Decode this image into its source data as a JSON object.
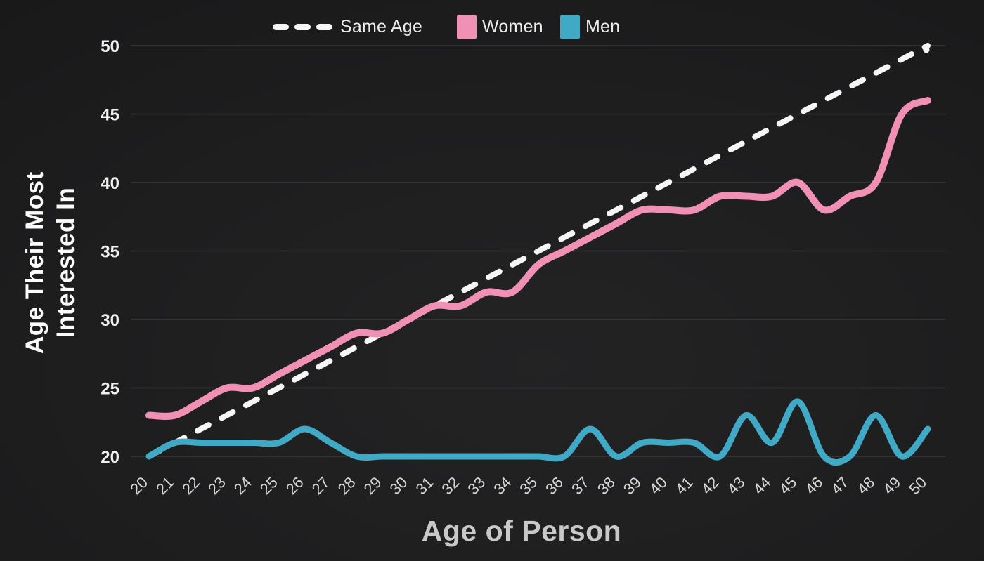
{
  "chart_data": {
    "type": "line",
    "x_label": "Age of Person",
    "y_label_lines": [
      "Age Their Most",
      "Interested In"
    ],
    "x": [
      20,
      21,
      22,
      23,
      24,
      25,
      26,
      27,
      28,
      29,
      30,
      31,
      32,
      33,
      34,
      35,
      36,
      37,
      38,
      39,
      40,
      41,
      42,
      43,
      44,
      45,
      46,
      47,
      48,
      49,
      50
    ],
    "y_ticks": [
      20,
      25,
      30,
      35,
      40,
      45,
      50
    ],
    "xlim": [
      20,
      50
    ],
    "ylim": [
      20,
      50
    ],
    "grid": "horizontal",
    "legend_position": "top-center",
    "series": [
      {
        "name": "Same Age",
        "style": "dashed",
        "color": "#f6f6f6",
        "values": [
          20,
          21,
          22,
          23,
          24,
          25,
          26,
          27,
          28,
          29,
          30,
          31,
          32,
          33,
          34,
          35,
          36,
          37,
          38,
          39,
          40,
          41,
          42,
          43,
          44,
          45,
          46,
          47,
          48,
          49,
          50
        ]
      },
      {
        "name": "Women",
        "style": "solid",
        "color": "#f090b5",
        "values": [
          23,
          23,
          24,
          25,
          25,
          26,
          27,
          28,
          29,
          29,
          30,
          31,
          31,
          32,
          32,
          34,
          35,
          36,
          37,
          38,
          38,
          38,
          39,
          39,
          39,
          40,
          38,
          39,
          40,
          45,
          46
        ]
      },
      {
        "name": "Men",
        "style": "solid",
        "color": "#40aac6",
        "values": [
          20,
          21,
          21,
          21,
          21,
          21,
          22,
          21,
          20,
          20,
          20,
          20,
          20,
          20,
          20,
          20,
          20,
          22,
          20,
          21,
          21,
          21,
          20,
          23,
          21,
          24,
          20,
          20,
          23,
          20,
          22
        ]
      }
    ]
  },
  "colors": {
    "background": "#1d1d1e",
    "gridline": "#3a3a3a",
    "x_tick_label": "#d6d6d6",
    "y_tick_label": "#f0f0f0",
    "x_axis_title": "#c9c9c9",
    "y_axis_title": "#fbfbfb"
  }
}
